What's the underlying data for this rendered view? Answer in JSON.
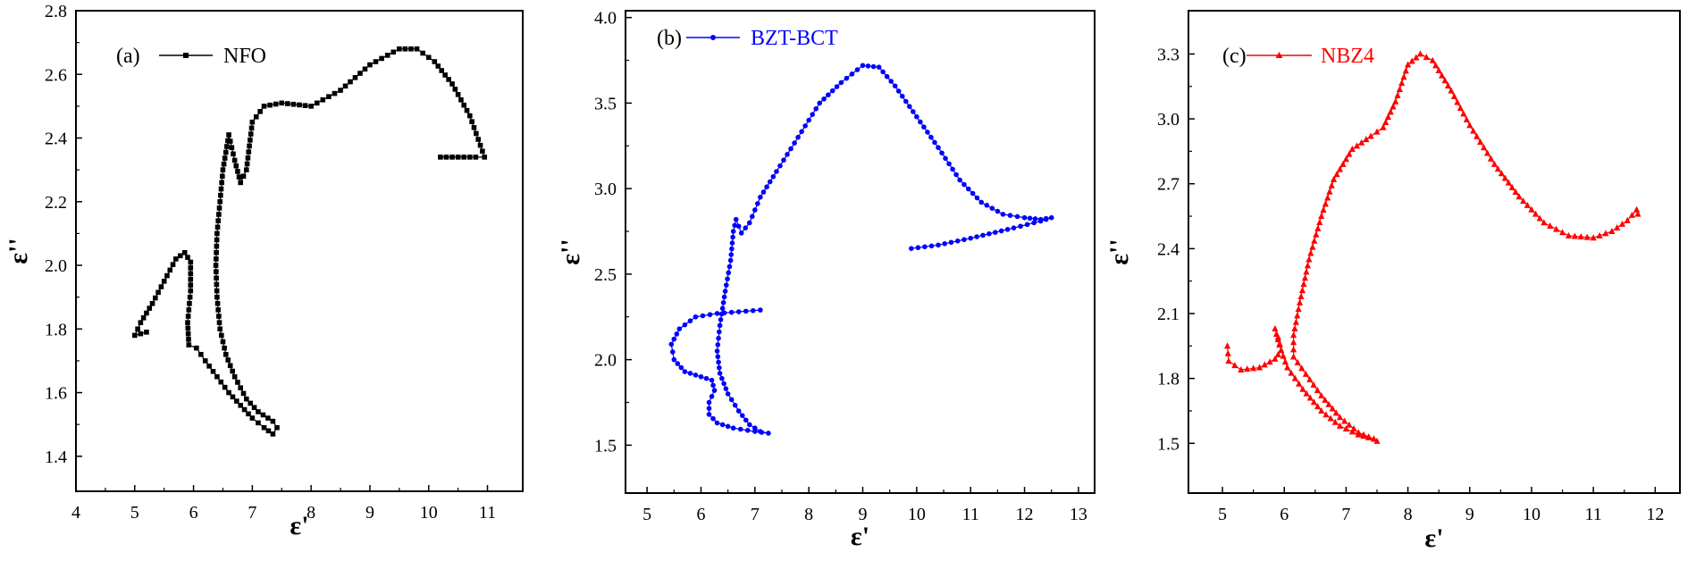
{
  "colors": {
    "a": "#000000",
    "b": "#0000ff",
    "c": "#ff0000"
  },
  "chart_data": [
    {
      "type": "scatter",
      "panel_label": "(a)",
      "xlabel": "ε'",
      "ylabel": "ε''",
      "xlim": [
        4,
        11.6
      ],
      "ylim": [
        1.29,
        2.8
      ],
      "xticks": [
        4,
        5,
        6,
        7,
        8,
        9,
        10,
        11
      ],
      "yticks": [
        1.4,
        1.6,
        1.8,
        2.0,
        2.2,
        2.4,
        2.6,
        2.8
      ],
      "ytick_labels": [
        "1.4",
        "1.6",
        "1.8",
        "2.0",
        "2.2",
        "2.4",
        "2.6",
        "2.8"
      ],
      "series": [
        {
          "name": "NFO",
          "color": "#000000",
          "marker": "square",
          "points": [
            [
              5.2,
              1.79
            ],
            [
              5.0,
              1.78
            ],
            [
              5.1,
              1.82
            ],
            [
              5.3,
              1.88
            ],
            [
              5.5,
              1.95
            ],
            [
              5.7,
              2.02
            ],
            [
              5.85,
              2.04
            ],
            [
              5.95,
              2.01
            ],
            [
              5.95,
              1.92
            ],
            [
              5.9,
              1.82
            ],
            [
              5.92,
              1.75
            ],
            [
              6.05,
              1.74
            ],
            [
              6.2,
              1.7
            ],
            [
              6.4,
              1.65
            ],
            [
              6.6,
              1.6
            ],
            [
              6.8,
              1.56
            ],
            [
              7.0,
              1.52
            ],
            [
              7.2,
              1.49
            ],
            [
              7.35,
              1.47
            ],
            [
              7.42,
              1.49
            ],
            [
              7.35,
              1.51
            ],
            [
              7.1,
              1.54
            ],
            [
              6.9,
              1.58
            ],
            [
              6.7,
              1.65
            ],
            [
              6.55,
              1.72
            ],
            [
              6.45,
              1.8
            ],
            [
              6.4,
              1.9
            ],
            [
              6.38,
              2.0
            ],
            [
              6.4,
              2.1
            ],
            [
              6.45,
              2.2
            ],
            [
              6.5,
              2.3
            ],
            [
              6.6,
              2.41
            ],
            [
              6.7,
              2.33
            ],
            [
              6.8,
              2.26
            ],
            [
              6.9,
              2.3
            ],
            [
              7.0,
              2.45
            ],
            [
              7.2,
              2.5
            ],
            [
              7.5,
              2.51
            ],
            [
              8.0,
              2.5
            ],
            [
              8.5,
              2.55
            ],
            [
              9.0,
              2.63
            ],
            [
              9.5,
              2.68
            ],
            [
              9.8,
              2.68
            ],
            [
              10.1,
              2.64
            ],
            [
              10.4,
              2.57
            ],
            [
              10.7,
              2.47
            ],
            [
              10.95,
              2.34
            ],
            [
              10.8,
              2.34
            ],
            [
              10.5,
              2.34
            ],
            [
              10.2,
              2.34
            ]
          ]
        }
      ]
    },
    {
      "type": "scatter",
      "panel_label": "(b)",
      "xlabel": "ε'",
      "ylabel": "ε''",
      "xlim": [
        4.6,
        13.3
      ],
      "ylim": [
        1.22,
        4.04
      ],
      "xticks": [
        5,
        6,
        7,
        8,
        9,
        10,
        11,
        12,
        13
      ],
      "yticks": [
        1.5,
        2.0,
        2.5,
        3.0,
        3.5,
        4.0
      ],
      "ytick_labels": [
        "1.5",
        "2.0",
        "2.5",
        "3.0",
        "3.5",
        "4.0"
      ],
      "series": [
        {
          "name": "BZT-BCT",
          "color": "#0000ff",
          "marker": "circle",
          "points": [
            [
              7.1,
              2.29
            ],
            [
              6.7,
              2.28
            ],
            [
              6.3,
              2.27
            ],
            [
              5.9,
              2.25
            ],
            [
              5.6,
              2.18
            ],
            [
              5.45,
              2.09
            ],
            [
              5.5,
              2.0
            ],
            [
              5.7,
              1.93
            ],
            [
              6.0,
              1.9
            ],
            [
              6.2,
              1.88
            ],
            [
              6.25,
              1.82
            ],
            [
              6.15,
              1.75
            ],
            [
              6.15,
              1.68
            ],
            [
              6.3,
              1.63
            ],
            [
              6.6,
              1.6
            ],
            [
              7.0,
              1.58
            ],
            [
              7.25,
              1.57
            ],
            [
              7.1,
              1.58
            ],
            [
              6.9,
              1.62
            ],
            [
              6.7,
              1.7
            ],
            [
              6.5,
              1.8
            ],
            [
              6.35,
              1.92
            ],
            [
              6.3,
              2.05
            ],
            [
              6.35,
              2.2
            ],
            [
              6.45,
              2.4
            ],
            [
              6.55,
              2.58
            ],
            [
              6.6,
              2.75
            ],
            [
              6.65,
              2.82
            ],
            [
              6.75,
              2.74
            ],
            [
              6.9,
              2.8
            ],
            [
              7.1,
              2.95
            ],
            [
              7.4,
              3.1
            ],
            [
              7.8,
              3.3
            ],
            [
              8.2,
              3.5
            ],
            [
              8.6,
              3.62
            ],
            [
              9.0,
              3.72
            ],
            [
              9.3,
              3.71
            ],
            [
              9.6,
              3.6
            ],
            [
              10.0,
              3.42
            ],
            [
              10.4,
              3.24
            ],
            [
              10.8,
              3.05
            ],
            [
              11.2,
              2.92
            ],
            [
              11.6,
              2.85
            ],
            [
              12.0,
              2.83
            ],
            [
              12.3,
              2.82
            ],
            [
              12.5,
              2.83
            ],
            [
              12.3,
              2.81
            ],
            [
              11.8,
              2.77
            ],
            [
              11.0,
              2.71
            ],
            [
              10.4,
              2.67
            ],
            [
              9.9,
              2.65
            ]
          ]
        }
      ]
    },
    {
      "type": "scatter",
      "panel_label": "(c)",
      "xlabel": "ε'",
      "ylabel": "ε''",
      "xlim": [
        4.45,
        12.4
      ],
      "ylim": [
        1.27,
        3.5
      ],
      "xticks": [
        5,
        6,
        7,
        8,
        9,
        10,
        11,
        12
      ],
      "yticks": [
        1.5,
        1.8,
        2.1,
        2.4,
        2.7,
        3.0,
        3.3
      ],
      "ytick_labels": [
        "1.5",
        "1.8",
        "2.1",
        "2.4",
        "2.7",
        "3.0",
        "3.3"
      ],
      "series": [
        {
          "name": "NBZ4",
          "color": "#ff0000",
          "marker": "triangle",
          "points": [
            [
              5.08,
              1.95
            ],
            [
              5.1,
              1.88
            ],
            [
              5.3,
              1.84
            ],
            [
              5.6,
              1.85
            ],
            [
              5.85,
              1.89
            ],
            [
              5.95,
              1.93
            ],
            [
              5.9,
              1.99
            ],
            [
              5.85,
              2.03
            ],
            [
              5.95,
              1.93
            ],
            [
              6.05,
              1.85
            ],
            [
              6.3,
              1.75
            ],
            [
              6.6,
              1.65
            ],
            [
              6.9,
              1.58
            ],
            [
              7.2,
              1.54
            ],
            [
              7.45,
              1.52
            ],
            [
              7.5,
              1.51
            ],
            [
              7.45,
              1.52
            ],
            [
              7.2,
              1.55
            ],
            [
              6.9,
              1.62
            ],
            [
              6.6,
              1.72
            ],
            [
              6.35,
              1.82
            ],
            [
              6.15,
              1.9
            ],
            [
              6.15,
              2.0
            ],
            [
              6.25,
              2.15
            ],
            [
              6.4,
              2.35
            ],
            [
              6.6,
              2.55
            ],
            [
              6.8,
              2.72
            ],
            [
              7.1,
              2.86
            ],
            [
              7.4,
              2.92
            ],
            [
              7.6,
              2.96
            ],
            [
              7.8,
              3.08
            ],
            [
              8.0,
              3.25
            ],
            [
              8.2,
              3.3
            ],
            [
              8.4,
              3.27
            ],
            [
              8.7,
              3.13
            ],
            [
              9.0,
              2.97
            ],
            [
              9.4,
              2.79
            ],
            [
              9.8,
              2.64
            ],
            [
              10.2,
              2.52
            ],
            [
              10.6,
              2.46
            ],
            [
              11.0,
              2.45
            ],
            [
              11.3,
              2.48
            ],
            [
              11.55,
              2.53
            ],
            [
              11.7,
              2.58
            ],
            [
              11.72,
              2.56
            ]
          ]
        }
      ]
    }
  ]
}
